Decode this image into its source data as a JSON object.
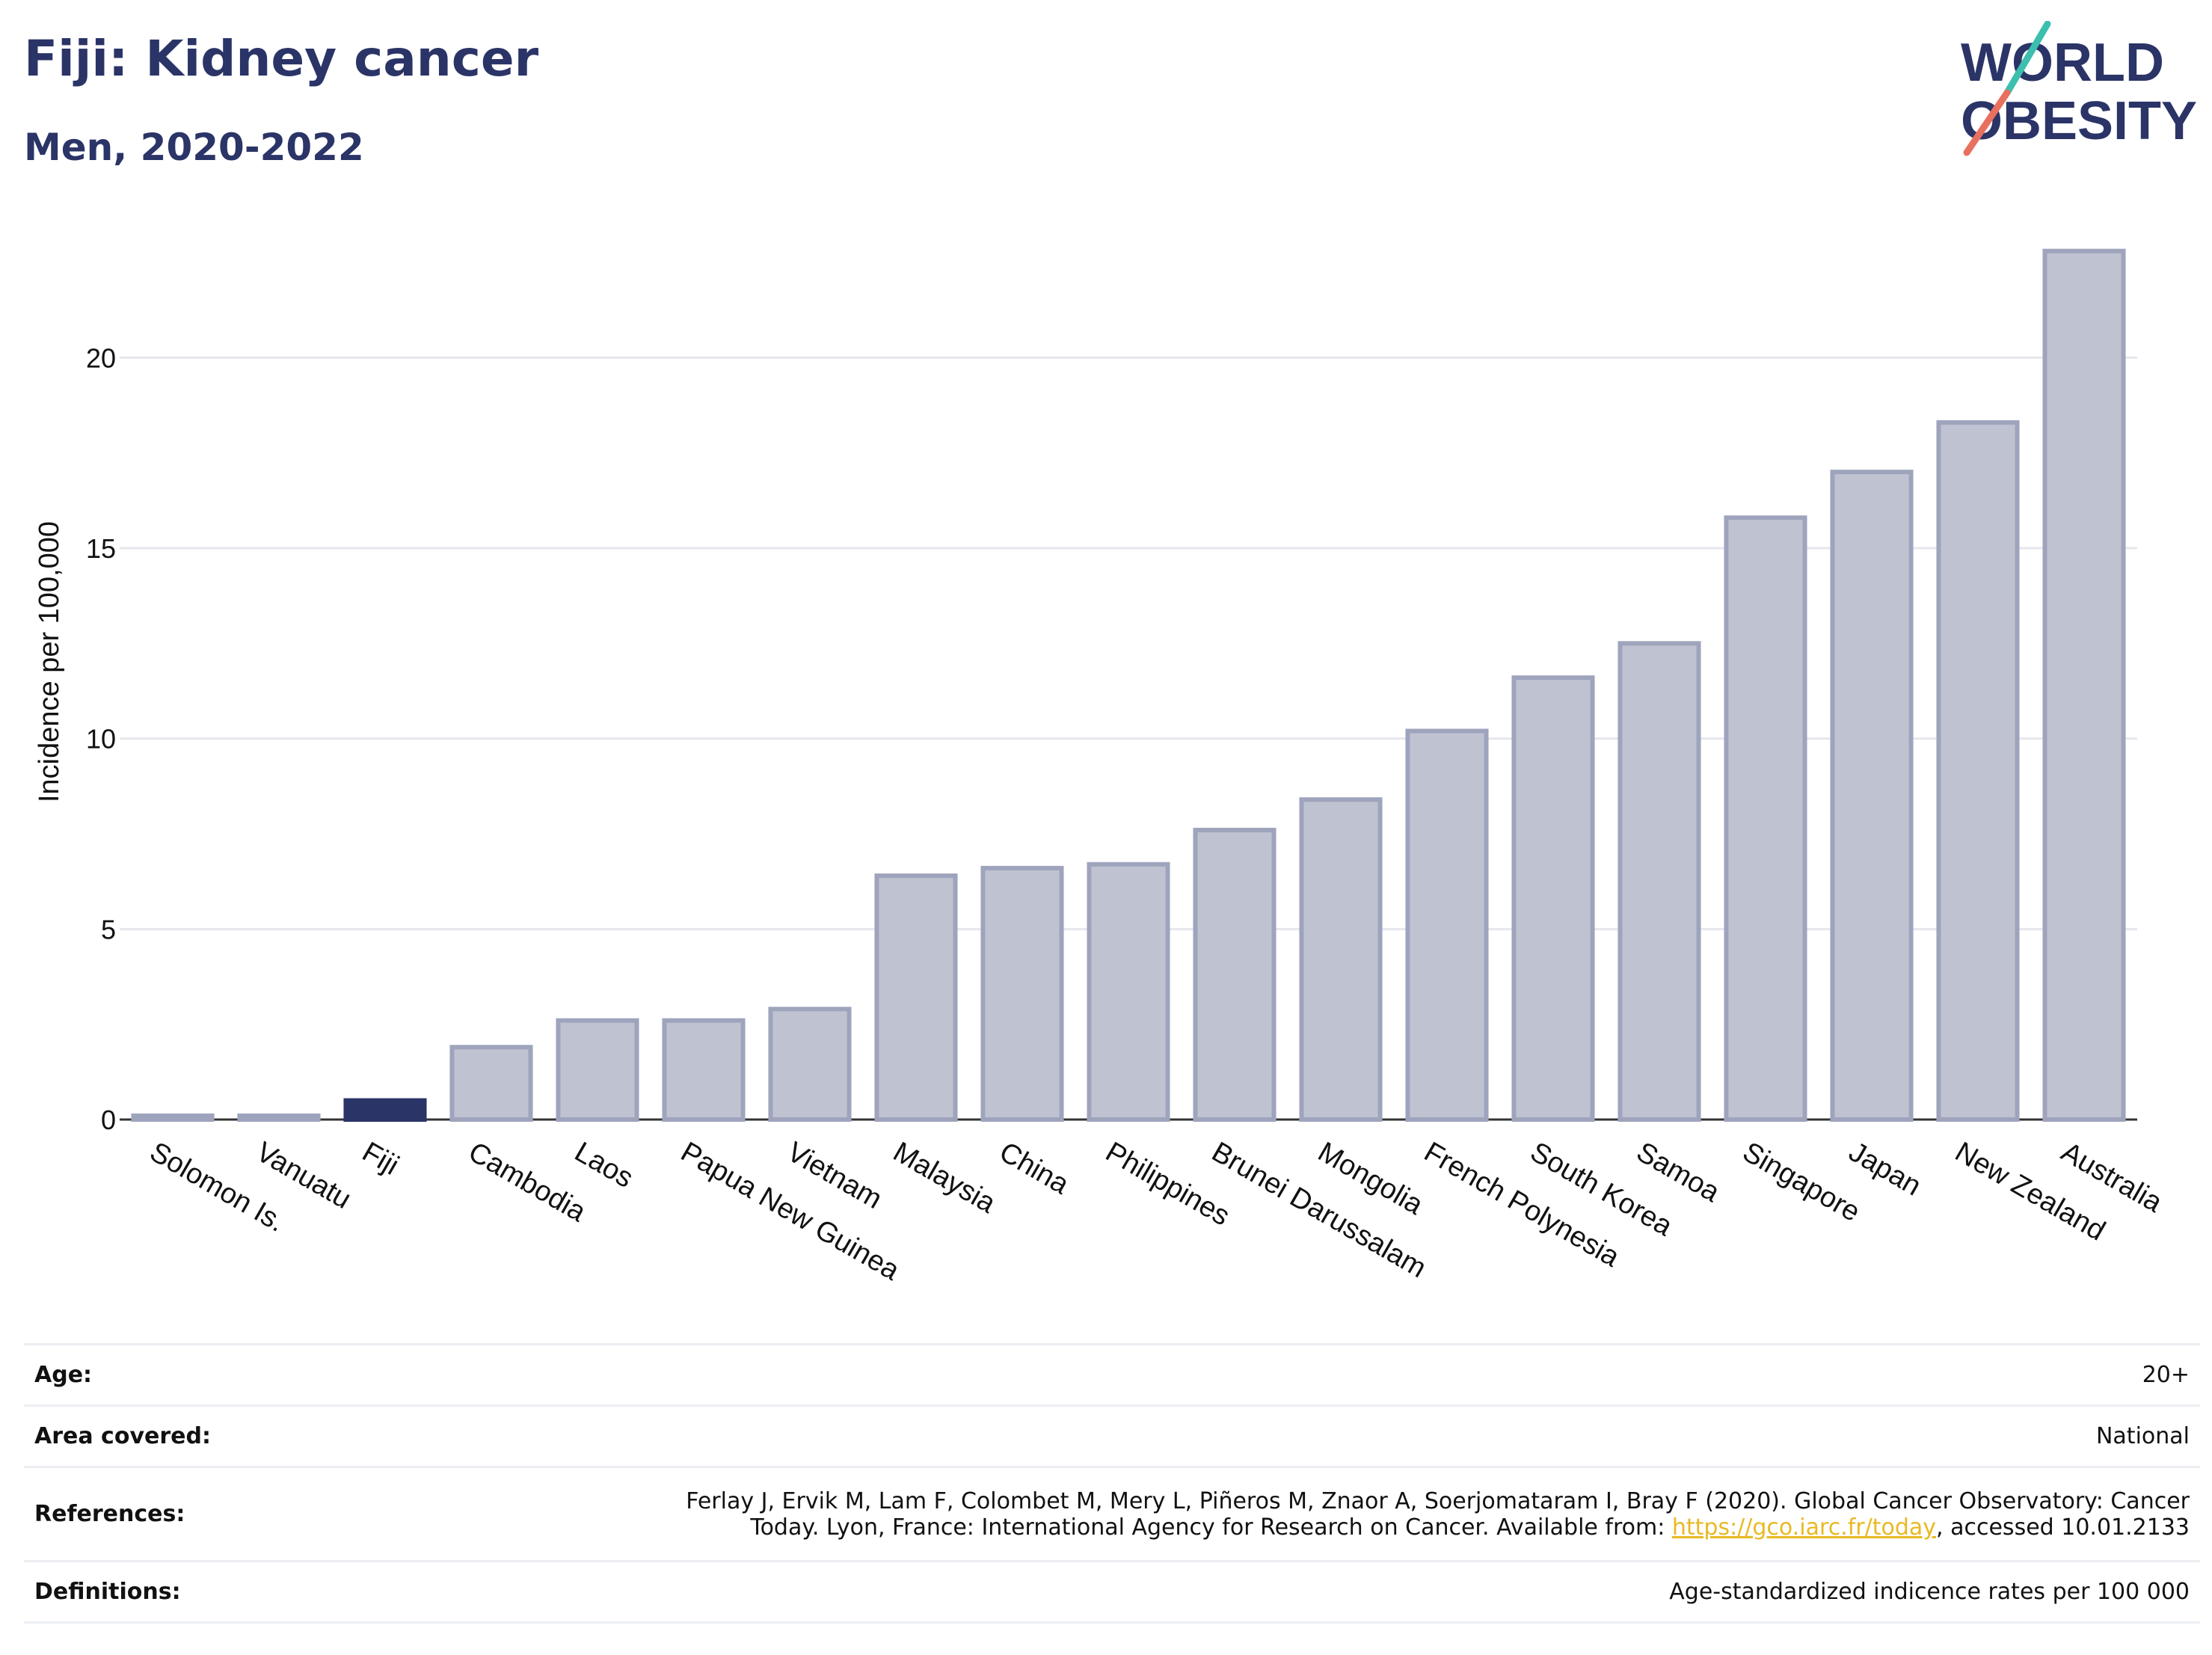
{
  "header": {
    "title": "Fiji: Kidney cancer",
    "subtitle": "Men, 2020-2022"
  },
  "logo": {
    "line1": "WORLD",
    "line2": "OBESITY"
  },
  "colors": {
    "highlight": "#2b3467",
    "bar_fill": "#bfc2d1",
    "bar_stroke": "#9fa4bd",
    "grid": "#e6e7ee",
    "logo_teal": "#3cbfae",
    "logo_coral": "#e8705f",
    "link": "#e8b923"
  },
  "chart_data": {
    "type": "bar",
    "title": "Fiji: Kidney cancer",
    "subtitle": "Men, 2020-2022",
    "ylabel": "Incidence per 100,000",
    "xlabel": "",
    "ylim": [
      0,
      23.5
    ],
    "yticks": [
      0,
      5,
      10,
      15,
      20
    ],
    "grid": true,
    "legend": "none",
    "highlight": "Fiji",
    "categories": [
      "Solomon Is.",
      "Vanuatu",
      "Fiji",
      "Cambodia",
      "Laos",
      "Papua New Guinea",
      "Vietnam",
      "Malaysia",
      "China",
      "Philippines",
      "Brunei Darussalam",
      "Mongolia",
      "French Polynesia",
      "South Korea",
      "Samoa",
      "Singapore",
      "Japan",
      "New Zealand",
      "Australia"
    ],
    "values": [
      0.1,
      0.1,
      0.5,
      1.9,
      2.6,
      2.6,
      2.9,
      6.4,
      6.6,
      6.7,
      7.6,
      8.4,
      10.2,
      11.6,
      12.5,
      15.8,
      17.0,
      18.3,
      22.8
    ]
  },
  "info": {
    "age_label": "Age:",
    "age_value": "20+",
    "area_label": "Area covered:",
    "area_value": "National",
    "references_label": "References:",
    "references_line1": "Ferlay J, Ervik M, Lam F, Colombet M, Mery L, Piñeros M, Znaor A, Soerjomataram I, Bray F (2020). Global Cancer Observatory: Cancer",
    "references_line2_pre": "Today. Lyon, France: International Agency for Research on Cancer. Available from: ",
    "references_link": "https://gco.iarc.fr/today",
    "references_line2_post": ", accessed 10.01.2133",
    "definitions_label": "Definitions:",
    "definitions_value": "Age-standardized indicence rates per 100 000"
  }
}
